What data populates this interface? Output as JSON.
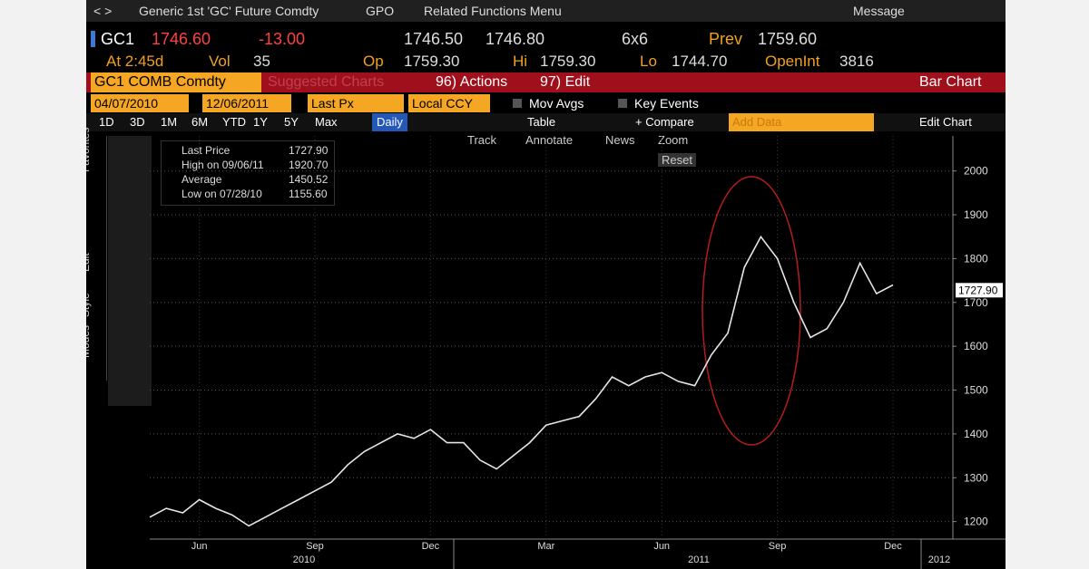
{
  "nav": {
    "security": "Generic 1st 'GC' Future Comdty",
    "function": "GPO",
    "menu": "Related Functions Menu",
    "message": "Message"
  },
  "quote": {
    "ticker": "GC1",
    "price": "1746.60",
    "change": "-13.00",
    "bid": "1746.50",
    "ask": "1746.80",
    "size": "6x6",
    "prev_label": "Prev",
    "prev": "1759.60",
    "time": "At 2:45d",
    "vol_label": "Vol",
    "vol": "35",
    "open_label": "Op",
    "open": "1759.30",
    "high_label": "Hi",
    "high": "1759.30",
    "low_label": "Lo",
    "low": "1744.70",
    "oi_label": "OpenInt",
    "oi": "3816"
  },
  "toolbar1": {
    "security": "GC1 COMB Comdty",
    "suggested": "Suggested Charts",
    "actions": "96) Actions",
    "edit": "97) Edit",
    "chart_type": "Bar Chart"
  },
  "toolbar2": {
    "start": "04/07/2010",
    "end": "12/06/2011",
    "field": "Last Px",
    "currency": "Local CCY",
    "mov_avgs": "Mov Avgs",
    "key_events": "Key Events"
  },
  "toolbar3": {
    "periods": [
      "1D",
      "3D",
      "1M",
      "6M",
      "YTD",
      "1Y",
      "5Y",
      "Max"
    ],
    "frequency": "Daily",
    "table": "Table",
    "compare": "+ Compare",
    "add_data": "Add Data",
    "edit_chart": "Edit Chart"
  },
  "chart_tools": [
    "Track",
    "Annotate",
    "News",
    "Zoom",
    "Reset"
  ],
  "side_tabs": [
    "Favorites",
    "Edit",
    "Style",
    "Modes"
  ],
  "legend": [
    {
      "label": "Last Price",
      "value": "1727.90"
    },
    {
      "label": "High on 09/06/11",
      "value": "1920.70"
    },
    {
      "label": "Average",
      "value": "1450.52"
    },
    {
      "label": "Low on 07/28/10",
      "value": "1155.60"
    }
  ],
  "chart_data": {
    "type": "line",
    "color": "#e6e6e6",
    "categories": [
      null,
      null,
      null,
      "Jun",
      null,
      null,
      null,
      null,
      null,
      null,
      "Sep",
      null,
      null,
      null,
      null,
      null,
      null,
      "Dec",
      null,
      null,
      null,
      null,
      null,
      null,
      "Mar",
      null,
      null,
      null,
      null,
      null,
      null,
      "Jun",
      null,
      null,
      null,
      null,
      null,
      null,
      "Sep",
      null,
      null,
      null,
      null,
      null,
      null,
      "Dec"
    ],
    "values": [
      1210,
      1230,
      1220,
      1250,
      1230,
      1215,
      1190,
      1210,
      1230,
      1250,
      1270,
      1290,
      1330,
      1360,
      1380,
      1400,
      1390,
      1410,
      1380,
      1380,
      1340,
      1320,
      1350,
      1380,
      1420,
      1430,
      1440,
      1480,
      1530,
      1510,
      1530,
      1540,
      1520,
      1510,
      1580,
      1630,
      1780,
      1850,
      1800,
      1700,
      1620,
      1640,
      1700,
      1790,
      1720,
      1740
    ],
    "years": [
      "2010",
      "2011",
      "2012"
    ],
    "ylim": [
      1160,
      2080
    ],
    "yticks": [
      1200,
      1300,
      1400,
      1500,
      1600,
      1700,
      1800,
      1900,
      2000
    ],
    "grid": true,
    "last": {
      "value": 1727.9,
      "label": "1727.90"
    }
  }
}
